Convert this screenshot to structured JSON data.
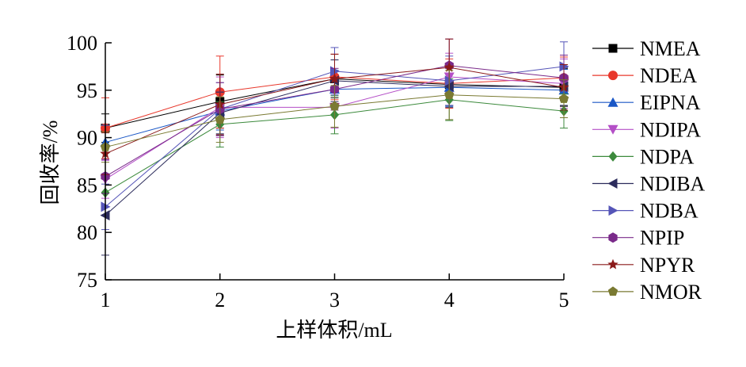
{
  "chart_data": {
    "type": "line",
    "title": "",
    "xlabel": "上样体积/mL",
    "ylabel": "回收率/%",
    "x": [
      1,
      2,
      3,
      4,
      5
    ],
    "xlim": [
      1,
      5
    ],
    "ylim": [
      75,
      100
    ],
    "yticks": [
      75,
      80,
      85,
      90,
      95,
      100
    ],
    "xticks": [
      1,
      2,
      3,
      4,
      5
    ],
    "grid": false,
    "legend_position": "right",
    "series": [
      {
        "name": "NMEA",
        "color": "#000000",
        "marker": "square",
        "values": [
          91.0,
          93.8,
          96.2,
          95.6,
          95.3
        ],
        "errors": [
          1.5,
          2.8,
          2.0,
          2.2,
          2.0
        ]
      },
      {
        "name": "NDEA",
        "color": "#e8382c",
        "marker": "circle",
        "values": [
          91.0,
          94.8,
          96.4,
          95.7,
          96.3
        ],
        "errors": [
          3.2,
          3.8,
          2.4,
          2.6,
          2.2
        ]
      },
      {
        "name": "EIPNA",
        "color": "#1a57c6",
        "marker": "triangle-up",
        "values": [
          89.5,
          92.8,
          95.1,
          95.3,
          95.0
        ],
        "errors": [
          1.8,
          2.0,
          2.0,
          2.0,
          2.2
        ]
      },
      {
        "name": "NDIPA",
        "color": "#b44fc7",
        "marker": "triangle-down",
        "values": [
          85.6,
          93.2,
          93.2,
          96.4,
          95.7
        ],
        "errors": [
          2.0,
          3.2,
          2.2,
          2.5,
          2.6
        ]
      },
      {
        "name": "NDPA",
        "color": "#3c8a3c",
        "marker": "diamond",
        "values": [
          84.2,
          91.4,
          92.4,
          94.0,
          92.8
        ],
        "errors": [
          1.5,
          2.4,
          2.0,
          2.2,
          1.8
        ]
      },
      {
        "name": "NDIBA",
        "color": "#2c2c5c",
        "marker": "triangle-left",
        "values": [
          81.8,
          92.6,
          96.0,
          95.4,
          95.4
        ],
        "errors": [
          4.2,
          2.2,
          2.2,
          2.2,
          2.0
        ]
      },
      {
        "name": "NDBA",
        "color": "#5555b8",
        "marker": "triangle-right",
        "values": [
          82.7,
          93.0,
          97.0,
          96.0,
          97.5
        ],
        "errors": [
          2.4,
          2.8,
          2.5,
          2.6,
          2.6
        ]
      },
      {
        "name": "NPIP",
        "color": "#7a2a8a",
        "marker": "hexagon",
        "values": [
          85.9,
          93.0,
          95.1,
          97.6,
          96.3
        ],
        "errors": [
          1.8,
          2.8,
          2.2,
          2.8,
          2.4
        ]
      },
      {
        "name": "NPYR",
        "color": "#8a1a1a",
        "marker": "star",
        "values": [
          88.3,
          93.5,
          96.2,
          97.4,
          95.3
        ],
        "errors": [
          2.2,
          3.2,
          2.6,
          3.0,
          2.4
        ]
      },
      {
        "name": "NMOR",
        "color": "#7a7a32",
        "marker": "pentagon",
        "values": [
          89.0,
          91.9,
          93.3,
          94.5,
          94.1
        ],
        "errors": [
          1.6,
          2.4,
          2.2,
          2.6,
          2.0
        ]
      }
    ]
  }
}
